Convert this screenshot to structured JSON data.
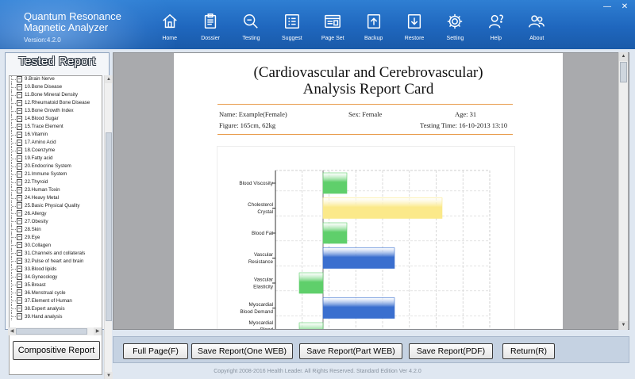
{
  "app": {
    "title_line1": "Quantum Resonance",
    "title_line2": "Magnetic Analyzer",
    "version": "Version:4.2.0"
  },
  "toolbar": [
    {
      "label": "Home",
      "icon": "home-icon"
    },
    {
      "label": "Dossier",
      "icon": "clipboard-icon"
    },
    {
      "label": "Testing",
      "icon": "magnifier-icon"
    },
    {
      "label": "Suggest",
      "icon": "list-icon"
    },
    {
      "label": "Page Set",
      "icon": "window-icon"
    },
    {
      "label": "Backup",
      "icon": "upload-icon"
    },
    {
      "label": "Restore",
      "icon": "download-icon"
    },
    {
      "label": "Setting",
      "icon": "gear-icon"
    },
    {
      "label": "Help",
      "icon": "person-help-icon"
    },
    {
      "label": "About",
      "icon": "people-icon"
    }
  ],
  "window_controls": {
    "minimize": "—",
    "close": "✕"
  },
  "sidebar": {
    "title": "Tested Report",
    "items": [
      "9.Brain Nerve",
      "10.Bone Disease",
      "11.Bone Mineral Density",
      "12.Rheumatoid Bone Disease",
      "13.Bone Growth Index",
      "14.Blood Sugar",
      "15.Trace Element",
      "16.Vitamin",
      "17.Amino Acid",
      "18.Coenzyme",
      "19.Fatty acid",
      "20.Endocrine System",
      "21.Immune System",
      "22.Thyroid",
      "23.Human Toxin",
      "24.Heavy Metal",
      "25.Basic Physical Quality",
      "26.Allergy",
      "27.Obesity",
      "28.Skin",
      "29.Eye",
      "30.Collagen",
      "31.Channels and collaterals",
      "32.Pulse of heart and brain",
      "33.Blood lipids",
      "34.Gynecology",
      "35.Breast",
      "36.Menstrual cycle",
      "37.Element of Human",
      "38.Expert analysis",
      "39.Hand analysis"
    ],
    "compositive_button": "Compositive Report"
  },
  "report": {
    "title_line1": "(Cardiovascular and Cerebrovascular)",
    "title_line2": "Analysis Report Card",
    "name": "Name: Example(Female)",
    "sex": "Sex: Female",
    "age": "Age: 31",
    "figure": "Figure: 165cm, 62kg",
    "testing_time": "Testing Time: 16-10-2013 13:10"
  },
  "chart_data": {
    "type": "bar",
    "orientation": "horizontal",
    "categories": [
      "Blood Viscosity",
      "Cholesterol Crystal",
      "Blood Fat",
      "Vascular Resistance",
      "Vascular Elasticity",
      "Myocardial Blood Demand",
      "Myocardial Blood Perfusion Volume"
    ],
    "values": [
      1,
      5,
      1,
      3,
      -1,
      3,
      -1
    ],
    "colors": [
      "#5fcf6b",
      "#fbe98a",
      "#5fcf6b",
      "#3a6fcf",
      "#5fcf6b",
      "#3a6fcf",
      "#5fcf6b"
    ],
    "xlim": [
      -2,
      7
    ],
    "grid": true
  },
  "actions": [
    "Full Page(F)",
    "Save Report(One WEB)",
    "Save Report(Part WEB)",
    "Save Report(PDF)",
    "Return(R)"
  ],
  "footer": "Copyright 2008-2016 Health Leader. All Rights Reserved.  Standard Edition Ver 4.2.0"
}
